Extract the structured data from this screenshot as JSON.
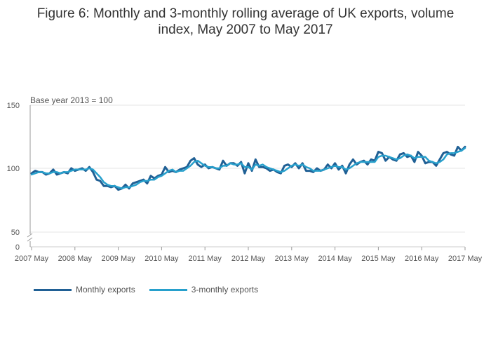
{
  "title": {
    "line1": "Figure 6: Monthly and 3-monthly rolling average of UK exports, volume",
    "line2": "index, May 2007 to May 2017"
  },
  "annotation": "Base year 2013 = 100",
  "colors": {
    "monthly": "#206095",
    "rolling": "#27a0cc",
    "grid": "#e6e6e6",
    "axis": "#999999",
    "text": "#555555"
  },
  "chart_data": {
    "type": "line",
    "title": "Figure 6: Monthly and 3-monthly rolling average of UK exports, volume index, May 2007 to May 2017",
    "xlabel": "",
    "ylabel": "",
    "annotation": "Base year 2013 = 100",
    "x_ticks": [
      "2007 May",
      "2008 May",
      "2009 May",
      "2010 May",
      "2011 May",
      "2012 May",
      "2013 May",
      "2014 May",
      "2015 May",
      "2016 May",
      "2017 May"
    ],
    "y_ticks": [
      0,
      50,
      100,
      150
    ],
    "y_axis_break": "between 0 and 50",
    "ylim": [
      0,
      150
    ],
    "x_start": "2007 May",
    "x_end": "2017 May",
    "grid": true,
    "legend_position": "bottom-left",
    "series": [
      {
        "name": "Monthly exports",
        "values": [
          96,
          98,
          97,
          97,
          95,
          96,
          99,
          95,
          96,
          97,
          96,
          100,
          98,
          99,
          100,
          98,
          101,
          97,
          91,
          90,
          86,
          86,
          85,
          86,
          83,
          84,
          87,
          84,
          88,
          89,
          90,
          91,
          88,
          94,
          92,
          94,
          95,
          101,
          97,
          98,
          97,
          99,
          100,
          101,
          106,
          108,
          103,
          101,
          103,
          100,
          101,
          100,
          99,
          106,
          102,
          104,
          104,
          102,
          105,
          96,
          104,
          98,
          107,
          101,
          101,
          100,
          98,
          99,
          97,
          96,
          102,
          103,
          101,
          104,
          100,
          104,
          98,
          98,
          97,
          100,
          98,
          99,
          103,
          100,
          104,
          99,
          102,
          96,
          103,
          107,
          103,
          105,
          106,
          103,
          107,
          106,
          113,
          112,
          106,
          109,
          107,
          106,
          111,
          112,
          109,
          110,
          105,
          113,
          110,
          104,
          105,
          105,
          102,
          107,
          112,
          113,
          111,
          110,
          117,
          114,
          117
        ],
        "source": "Monthly exports"
      },
      {
        "name": "3-monthly exports",
        "values": [
          95,
          96,
          97,
          97,
          96,
          96,
          97,
          97,
          96,
          97,
          97,
          98,
          99,
          99,
          99,
          99,
          100,
          99,
          96,
          93,
          89,
          87,
          86,
          86,
          85,
          84,
          85,
          85,
          86,
          87,
          89,
          90,
          90,
          91,
          91,
          93,
          94,
          96,
          98,
          99,
          97,
          98,
          98,
          100,
          102,
          105,
          106,
          104,
          102,
          101,
          101,
          100,
          100,
          102,
          102,
          104,
          103,
          103,
          104,
          101,
          101,
          99,
          103,
          102,
          103,
          101,
          100,
          99,
          98,
          97,
          98,
          100,
          102,
          103,
          102,
          103,
          101,
          100,
          98,
          98,
          98,
          99,
          100,
          101,
          102,
          101,
          101,
          99,
          100,
          102,
          104,
          105,
          105,
          105,
          105,
          105,
          109,
          110,
          110,
          109,
          108,
          107,
          108,
          110,
          111,
          110,
          108,
          109,
          109,
          109,
          106,
          105,
          104,
          105,
          107,
          111,
          112,
          112,
          113,
          114,
          116
        ],
        "source": "3-monthly exports"
      }
    ]
  }
}
